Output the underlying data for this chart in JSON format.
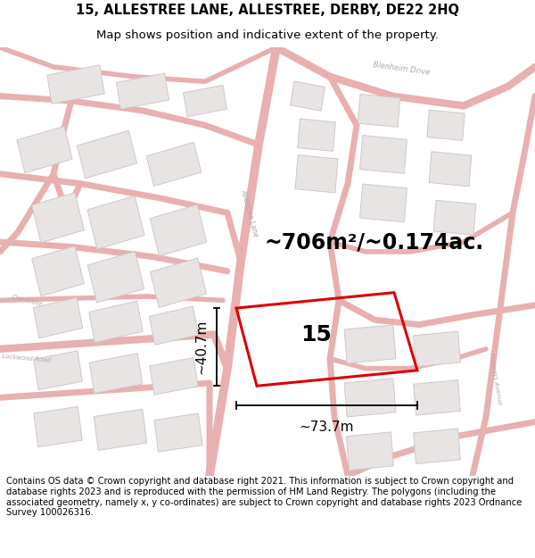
{
  "title_line1": "15, ALLESTREE LANE, ALLESTREE, DERBY, DE22 2HQ",
  "title_line2": "Map shows position and indicative extent of the property.",
  "area_text": "~706m²/~0.174ac.",
  "label_number": "15",
  "dim_width": "~73.7m",
  "dim_height": "~40.7m",
  "footer_text": "Contains OS data © Crown copyright and database right 2021. This information is subject to Crown copyright and database rights 2023 and is reproduced with the permission of HM Land Registry. The polygons (including the associated geometry, namely x, y co-ordinates) are subject to Crown copyright and database rights 2023 Ordnance Survey 100026316.",
  "bg_color": "#f8f4f4",
  "road_color": "#e8b0b0",
  "road_edge": "#d09090",
  "building_fill": "#e8e4e4",
  "building_edge": "#d0c8c8",
  "property_color": "#dd0000",
  "title_fontsize": 10.5,
  "subtitle_fontsize": 9.5,
  "area_fontsize": 17,
  "label_fontsize": 18,
  "dim_fontsize": 11,
  "footer_fontsize": 7.2,
  "road_label_color": "#aaaaaa",
  "road_label_size": 5.5
}
